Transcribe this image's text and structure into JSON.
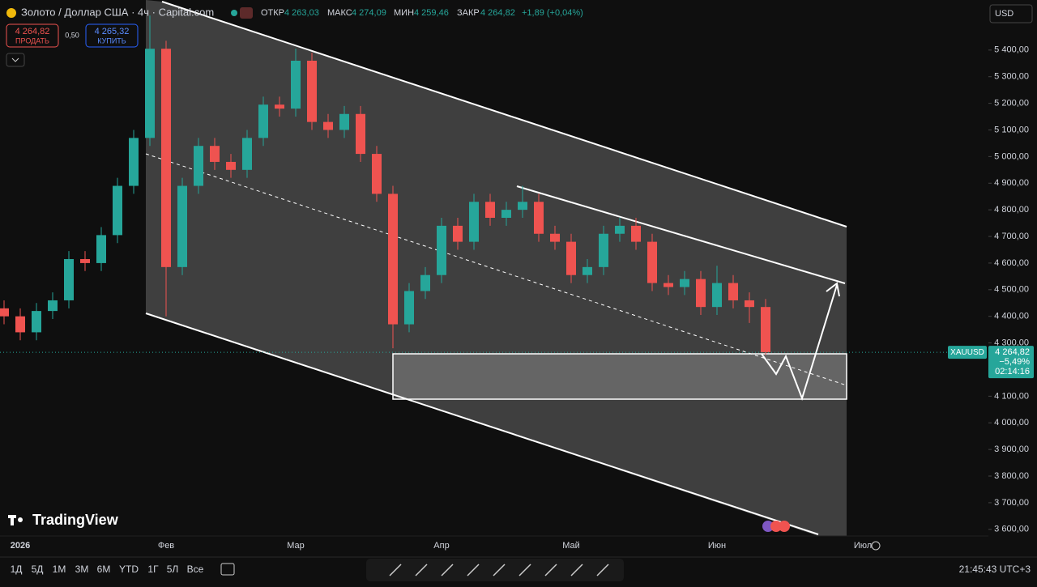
{
  "header": {
    "title": "Золото / Доллар США · 4ч · Capital.com",
    "open_label": "ОТКР",
    "open": "4 263,03",
    "high_label": "МАКС",
    "high": "4 274,09",
    "low_label": "МИН",
    "low": "4 259,46",
    "close_label": "ЗАКР",
    "close": "4 264,82",
    "change": "+1,89 (+0,04%)",
    "currency": "USD"
  },
  "trade": {
    "sell_price": "4 264,82",
    "sell_label": "ПРОДАТЬ",
    "spread": "0,50",
    "buy_price": "4 265,32",
    "buy_label": "КУПИТЬ"
  },
  "logo": "TradingView",
  "chart_data": {
    "type": "candlestick",
    "categories": [
      null,
      "2026",
      null,
      null,
      null,
      null,
      null,
      null,
      null,
      null,
      "Фев",
      null,
      null,
      null,
      null,
      null,
      null,
      null,
      "Мар",
      null,
      null,
      null,
      null,
      null,
      null,
      null,
      null,
      "Апр",
      null,
      null,
      null,
      null,
      null,
      null,
      null,
      "Май",
      null,
      null,
      null,
      null,
      null,
      null,
      null,
      null,
      "Июн",
      null,
      null,
      null,
      null,
      null,
      null,
      null,
      null,
      "Июл"
    ],
    "open": [
      4430,
      4400,
      4340,
      4420,
      4460,
      4615,
      4600,
      4705,
      4890,
      5070,
      5405,
      4585,
      4890,
      5040,
      4980,
      4950,
      5070,
      5195,
      5180,
      5360,
      5130,
      5100,
      5160,
      5010,
      4860,
      4370,
      4495,
      4555,
      4740,
      4680,
      4830,
      4770,
      4800,
      4830,
      4710,
      4680,
      4555,
      4585,
      4710,
      4740,
      4680,
      4525,
      4510,
      4540,
      4435,
      4525,
      4460,
      4435,
      null,
      null,
      null,
      null,
      null,
      null
    ],
    "high": [
      4460,
      4430,
      4450,
      4490,
      4645,
      4645,
      4735,
      4920,
      5100,
      5530,
      5435,
      4920,
      5070,
      5070,
      5010,
      5100,
      5225,
      5225,
      5405,
      5390,
      5160,
      5190,
      5190,
      5040,
      4890,
      4525,
      4585,
      4770,
      4770,
      4860,
      4860,
      4830,
      4890,
      4860,
      4740,
      4710,
      4615,
      4740,
      4770,
      4770,
      4710,
      4555,
      4570,
      4570,
      4590,
      4555,
      4490,
      4465,
      null,
      null,
      null,
      null,
      null,
      null
    ],
    "low": [
      4370,
      4310,
      4310,
      4390,
      4430,
      4570,
      4570,
      4675,
      4860,
      5040,
      4400,
      4555,
      4860,
      4950,
      4920,
      4920,
      5040,
      5150,
      5150,
      5100,
      5070,
      5070,
      4980,
      4830,
      4280,
      4340,
      4465,
      4525,
      4650,
      4650,
      4740,
      4740,
      4770,
      4680,
      4650,
      4525,
      4525,
      4555,
      4680,
      4650,
      4495,
      4480,
      4480,
      4405,
      4405,
      4430,
      4375,
      4255,
      null,
      null,
      null,
      null,
      null,
      null
    ],
    "close": [
      4400,
      4340,
      4420,
      4460,
      4615,
      4600,
      4705,
      4890,
      5070,
      5405,
      4585,
      4890,
      5040,
      4980,
      4950,
      5070,
      5195,
      5180,
      5360,
      5130,
      5100,
      5160,
      5010,
      4860,
      4370,
      4495,
      4555,
      4740,
      4680,
      4830,
      4770,
      4800,
      4830,
      4710,
      4680,
      4555,
      4585,
      4710,
      4740,
      4680,
      4525,
      4510,
      4540,
      4435,
      4525,
      4460,
      4435,
      4265,
      null,
      null,
      null,
      null,
      null,
      null
    ],
    "up_color": "#26a69a",
    "down_color": "#ef5350",
    "ylim": [
      3575,
      5588
    ],
    "yticks": [
      {
        "value": 3600,
        "label": "3 600,00"
      },
      {
        "value": 3700,
        "label": "3 700,00"
      },
      {
        "value": 3800,
        "label": "3 800,00"
      },
      {
        "value": 3900,
        "label": "3 900,00"
      },
      {
        "value": 4000,
        "label": "4 000,00"
      },
      {
        "value": 4100,
        "label": "4 100,00"
      },
      {
        "value": 4200,
        "label": "4 200,00"
      },
      {
        "value": 4300,
        "label": "4 300,00"
      },
      {
        "value": 4400,
        "label": "4 400,00"
      },
      {
        "value": 4500,
        "label": "4 500,00"
      },
      {
        "value": 4600,
        "label": "4 600,00"
      },
      {
        "value": 4700,
        "label": "4 700,00"
      },
      {
        "value": 4800,
        "label": "4 800,00"
      },
      {
        "value": 4900,
        "label": "4 900,00"
      },
      {
        "value": 5000,
        "label": "5 000,00"
      },
      {
        "value": 5100,
        "label": "5 100,00"
      },
      {
        "value": 5200,
        "label": "5 200,00"
      },
      {
        "value": 5300,
        "label": "5 300,00"
      },
      {
        "value": 5400,
        "label": "5 400,00"
      }
    ],
    "last_price": {
      "symbol": "XAUUSD",
      "value": 4264.82,
      "label": "4 264,82",
      "change": "−5,49%",
      "countdown": "02:14:16"
    }
  },
  "toolbar": {
    "ranges": [
      "1Д",
      "5Д",
      "1М",
      "3М",
      "6М",
      "YTD",
      "1Г",
      "5Л",
      "Все"
    ],
    "clock": "21:45:43 UTC+3"
  }
}
